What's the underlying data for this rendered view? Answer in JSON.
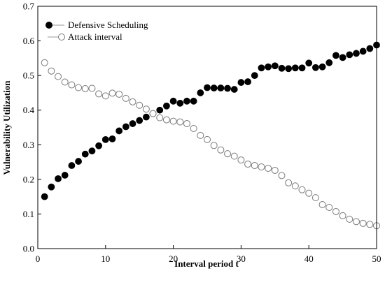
{
  "chart_data": {
    "type": "scatter",
    "xlabel": "Interval period t",
    "ylabel": "Vulnerability Utilization",
    "xlim": [
      0,
      50
    ],
    "ylim": [
      0,
      0.7
    ],
    "x_ticks": [
      "0",
      "10",
      "20",
      "30",
      "40",
      "50"
    ],
    "y_ticks": [
      "0.0",
      "0.1",
      "0.2",
      "0.3",
      "0.4",
      "0.5",
      "0.6",
      "0.7"
    ],
    "grid": false,
    "legend_position": "top-left",
    "series": [
      {
        "name": "Defensive Scheduling",
        "marker": "filled-circle",
        "color": "#000000",
        "x": [
          1,
          2,
          3,
          4,
          5,
          6,
          7,
          8,
          9,
          10,
          11,
          12,
          13,
          14,
          15,
          16,
          17,
          18,
          19,
          20,
          21,
          22,
          23,
          24,
          25,
          26,
          27,
          28,
          29,
          30,
          31,
          32,
          33,
          34,
          35,
          36,
          37,
          38,
          39,
          40,
          41,
          42,
          43,
          44,
          45,
          46,
          47,
          48,
          49,
          50
        ],
        "y": [
          0.15,
          0.178,
          0.202,
          0.212,
          0.24,
          0.252,
          0.273,
          0.282,
          0.297,
          0.315,
          0.317,
          0.34,
          0.352,
          0.361,
          0.37,
          0.38,
          0.39,
          0.4,
          0.412,
          0.426,
          0.42,
          0.426,
          0.426,
          0.45,
          0.465,
          0.464,
          0.464,
          0.463,
          0.46,
          0.48,
          0.482,
          0.5,
          0.522,
          0.525,
          0.528,
          0.521,
          0.52,
          0.522,
          0.522,
          0.536,
          0.523,
          0.525,
          0.537,
          0.558,
          0.552,
          0.56,
          0.564,
          0.57,
          0.578,
          0.588
        ]
      },
      {
        "name": "Attack interval",
        "marker": "open-circle",
        "color": "#7a7a7a",
        "x": [
          1,
          2,
          3,
          4,
          5,
          6,
          7,
          8,
          9,
          10,
          11,
          12,
          13,
          14,
          15,
          16,
          17,
          18,
          19,
          20,
          21,
          22,
          23,
          24,
          25,
          26,
          27,
          28,
          29,
          30,
          31,
          32,
          33,
          34,
          35,
          36,
          37,
          38,
          39,
          40,
          41,
          42,
          43,
          44,
          45,
          46,
          47,
          48,
          49,
          50
        ],
        "y": [
          0.537,
          0.513,
          0.497,
          0.481,
          0.473,
          0.465,
          0.462,
          0.463,
          0.447,
          0.441,
          0.449,
          0.446,
          0.434,
          0.424,
          0.414,
          0.403,
          0.39,
          0.378,
          0.372,
          0.368,
          0.366,
          0.361,
          0.347,
          0.327,
          0.315,
          0.298,
          0.285,
          0.274,
          0.267,
          0.256,
          0.244,
          0.24,
          0.236,
          0.232,
          0.226,
          0.211,
          0.19,
          0.181,
          0.17,
          0.16,
          0.147,
          0.127,
          0.119,
          0.107,
          0.095,
          0.085,
          0.078,
          0.073,
          0.07,
          0.066
        ]
      }
    ]
  }
}
